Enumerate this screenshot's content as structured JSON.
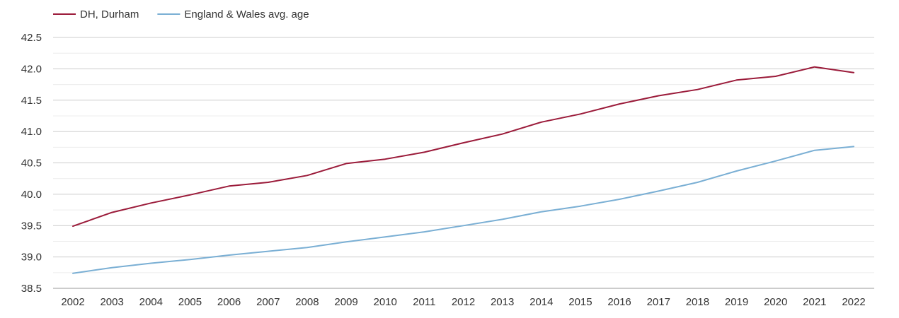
{
  "chart_data": {
    "type": "line",
    "title": "",
    "xlabel": "",
    "ylabel": "",
    "x": [
      "2002",
      "2003",
      "2004",
      "2005",
      "2006",
      "2007",
      "2008",
      "2009",
      "2010",
      "2011",
      "2012",
      "2013",
      "2014",
      "2015",
      "2016",
      "2017",
      "2018",
      "2019",
      "2020",
      "2021",
      "2022"
    ],
    "ylim": [
      38.5,
      42.5
    ],
    "yticks": [
      "38.5",
      "39.0",
      "39.5",
      "40.0",
      "40.5",
      "41.0",
      "41.5",
      "42.0",
      "42.5"
    ],
    "grid": true,
    "legend_position": "top-left",
    "series": [
      {
        "name": "DH, Durham",
        "color": "#9b1b3a",
        "values": [
          39.49,
          39.71,
          39.86,
          39.99,
          40.13,
          40.19,
          40.3,
          40.49,
          40.56,
          40.67,
          40.82,
          40.96,
          41.15,
          41.28,
          41.44,
          41.57,
          41.67,
          41.82,
          41.88,
          42.03,
          41.94
        ]
      },
      {
        "name": "England & Wales avg. age",
        "color": "#7aafd4",
        "values": [
          38.74,
          38.83,
          38.9,
          38.96,
          39.03,
          39.09,
          39.15,
          39.24,
          39.32,
          39.4,
          39.5,
          39.6,
          39.72,
          39.81,
          39.92,
          40.05,
          40.19,
          40.37,
          40.53,
          40.7,
          40.76
        ]
      }
    ]
  }
}
